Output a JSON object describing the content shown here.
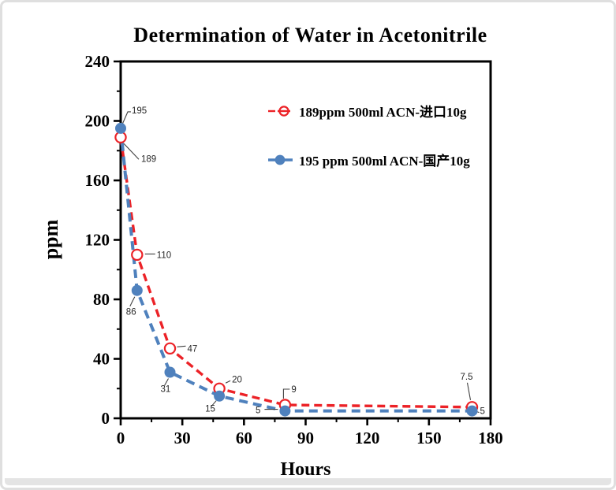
{
  "chart_data": {
    "type": "line",
    "title": "Determination of Water in Acetonitrile",
    "xlabel": "Hours",
    "ylabel": "ppm",
    "xlim": [
      0,
      180
    ],
    "ylim": [
      0,
      240
    ],
    "x_major_ticks": [
      0,
      30,
      60,
      90,
      120,
      150,
      180
    ],
    "x_minor_ticks": [
      15,
      45,
      75,
      105,
      135,
      165
    ],
    "y_major_ticks": [
      0,
      40,
      80,
      120,
      160,
      200,
      240
    ],
    "y_minor_ticks": [
      20,
      60,
      100,
      140,
      180,
      220
    ],
    "grid": false,
    "legend_position": "inside-upper-right",
    "series": [
      {
        "name": "189ppm  500ml ACN-进口10g",
        "color": "#ec2227",
        "marker": "open-circle",
        "line_style": "dashed",
        "x": [
          0,
          8,
          24,
          48,
          80,
          171
        ],
        "y": [
          189,
          110,
          47,
          20,
          9,
          7.5
        ],
        "point_labels": [
          "189",
          "110",
          "47",
          "20",
          "9",
          "7.5"
        ]
      },
      {
        "name": "195 ppm 500ml ACN-国产10g",
        "color": "#4f81bd",
        "marker": "filled-circle",
        "line_style": "dashed",
        "x": [
          0,
          8,
          24,
          48,
          80,
          171
        ],
        "y": [
          195,
          86,
          31,
          15,
          5,
          5
        ],
        "point_labels": [
          "195",
          "86",
          "31",
          "15",
          "5",
          "5"
        ]
      }
    ],
    "colors": {
      "axis": "#000000",
      "annotation_text": "#262626",
      "leader_line": "#3f3f3f",
      "frame_border": "#dfdfdf"
    }
  }
}
